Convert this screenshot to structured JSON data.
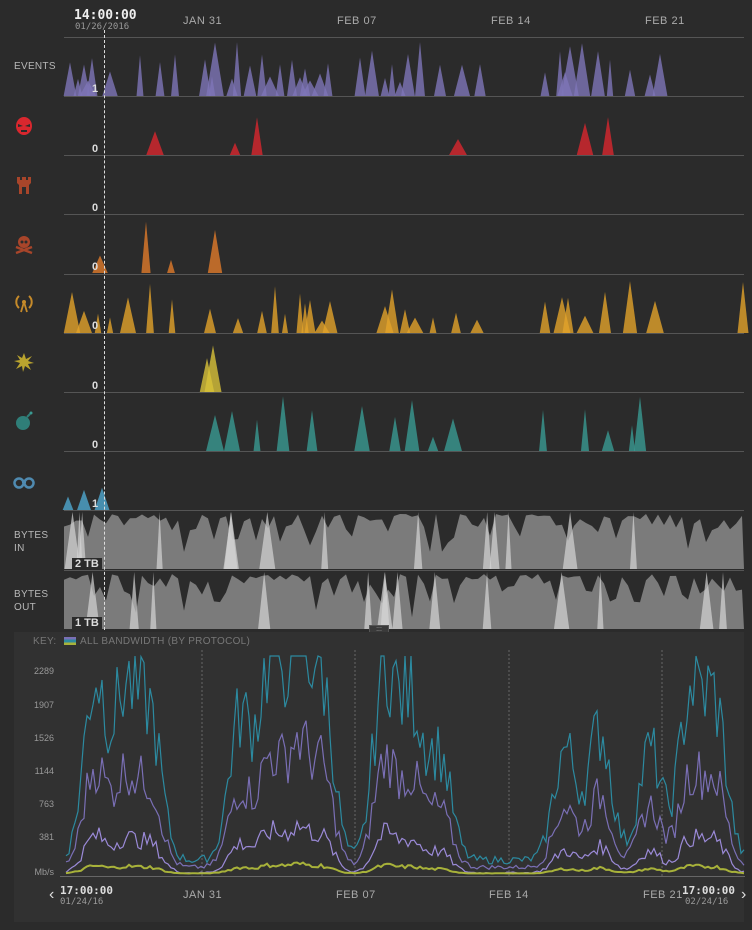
{
  "timeline": {
    "cursor_time": "14:00:00",
    "cursor_date": "01/26/2016",
    "date_ticks": [
      "JAN 31",
      "FEB 07",
      "FEB 14",
      "FEB 21"
    ]
  },
  "rows": [
    {
      "label": "EVENTS",
      "icon": "events-label",
      "value": "1",
      "color": "#7e76b8"
    },
    {
      "label": "",
      "icon": "skull-mask-icon",
      "value": "0",
      "color": "#d9272e"
    },
    {
      "label": "",
      "icon": "castle-tower-icon",
      "value": "0",
      "color": "#c0472a"
    },
    {
      "label": "",
      "icon": "skull-crossbones-icon",
      "value": "0",
      "color": "#e07a2a"
    },
    {
      "label": "",
      "icon": "broadcast-antenna-icon",
      "value": "0",
      "color": "#e2a22a"
    },
    {
      "label": "",
      "icon": "explosion-icon",
      "value": "0",
      "color": "#d8c23a"
    },
    {
      "label": "",
      "icon": "bomb-icon",
      "value": "0",
      "color": "#3a9a92"
    },
    {
      "label": "",
      "icon": "binoculars-icon",
      "value": "1",
      "color": "#4fa8d0"
    },
    {
      "label": "BYTES IN",
      "icon": "",
      "value": "2 TB",
      "color": "#9a9a9a"
    },
    {
      "label": "BYTES OUT",
      "icon": "",
      "value": "1 TB",
      "color": "#9a9a9a"
    }
  ],
  "bandwidth": {
    "key_label": "KEY:",
    "key_text": "ALL BANDWIDTH (BY PROTOCOL)",
    "y_ticks": [
      "2289",
      "1907",
      "1526",
      "1144",
      "763",
      "381",
      "Mb/s"
    ],
    "x_ticks": [
      "JAN 31",
      "FEB 07",
      "FEB 14",
      "FEB 21"
    ],
    "range_start_time": "17:00:00",
    "range_start_date": "01/24/16",
    "range_end_time": "17:00:00",
    "range_end_date": "02/24/16",
    "series_colors": [
      "#2c8aa0",
      "#7a6fb5",
      "#9b8ad8",
      "#a8b23a"
    ]
  }
}
